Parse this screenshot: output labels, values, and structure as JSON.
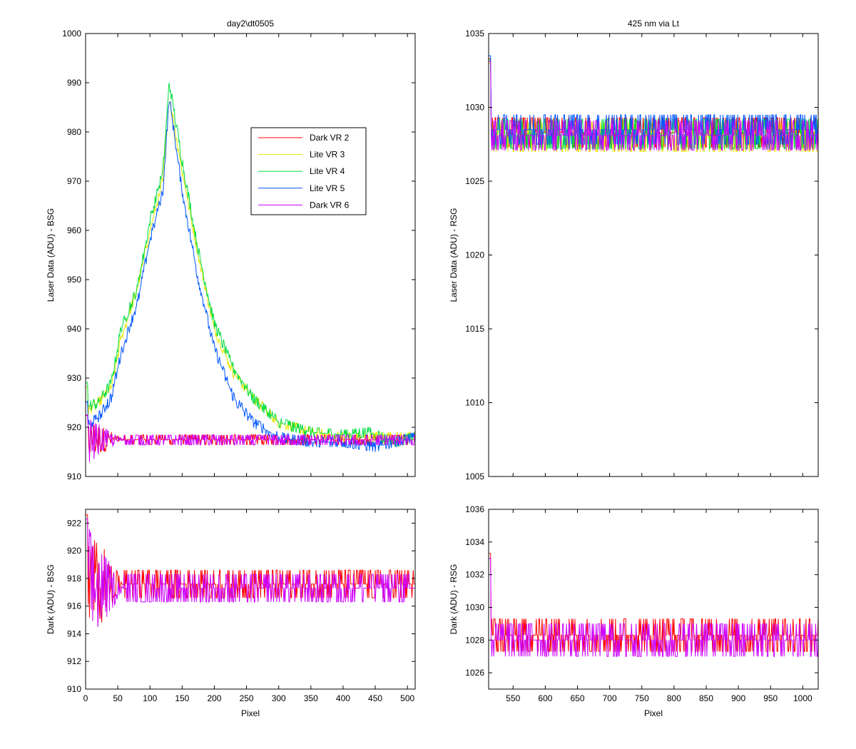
{
  "colors": {
    "dark_vr2": "#ff0000",
    "lite_vr3": "#e6e600",
    "lite_vr4": "#00dd40",
    "lite_vr5": "#0055ff",
    "dark_vr6": "#cc00ff"
  },
  "chart_data": [
    {
      "id": "top-left",
      "type": "line",
      "title": "day2\\dt0505",
      "xlabel": "",
      "ylabel": "Laser Data (ADU) - BSG",
      "xlim": [
        0,
        512
      ],
      "ylim": [
        910,
        1000
      ],
      "xticks": [],
      "yticks": [
        910,
        920,
        930,
        940,
        950,
        960,
        970,
        980,
        990,
        1000
      ],
      "legend": {
        "position": "upper-right-inside",
        "entries": [
          "Dark VR 2",
          "Lite VR 3",
          "Lite VR 4",
          "Lite VR 5",
          "Dark VR 6"
        ]
      },
      "series": [
        {
          "name": "Dark VR 2",
          "color_key": "dark_vr2",
          "baseline": 917.6,
          "noise": 0.9,
          "x": [
            0,
            100,
            200,
            300,
            400,
            512
          ],
          "y": [
            917.5,
            917.5,
            917.5,
            917.5,
            917.5,
            917.5
          ]
        },
        {
          "name": "Lite VR 3",
          "color_key": "lite_vr3",
          "noise": 0.8,
          "x": [
            0,
            20,
            40,
            55,
            80,
            100,
            120,
            130,
            150,
            175,
            200,
            230,
            260,
            300,
            350,
            400,
            430,
            460,
            512
          ],
          "y": [
            923,
            925,
            928,
            938,
            948,
            960,
            970,
            987,
            972,
            955,
            940,
            931,
            926,
            921,
            919,
            918,
            918,
            918,
            918
          ]
        },
        {
          "name": "Lite VR 4",
          "color_key": "lite_vr4",
          "noise": 1.0,
          "x": [
            0,
            20,
            40,
            55,
            80,
            100,
            120,
            130,
            150,
            175,
            200,
            230,
            260,
            300,
            350,
            400,
            440,
            460,
            480,
            512
          ],
          "y": [
            924,
            925,
            929,
            940,
            948,
            962,
            972,
            990,
            974,
            956,
            941,
            932,
            926,
            921,
            919,
            918.5,
            919,
            918,
            917,
            918
          ]
        },
        {
          "name": "Lite VR 5",
          "color_key": "lite_vr5",
          "noise": 1.0,
          "x": [
            0,
            20,
            40,
            55,
            80,
            100,
            120,
            130,
            150,
            175,
            200,
            230,
            260,
            300,
            350,
            400,
            450,
            480,
            512
          ],
          "y": [
            920,
            922,
            926,
            935,
            945,
            958,
            968,
            987,
            968,
            950,
            936,
            926,
            921,
            918,
            917,
            917,
            916,
            917,
            918
          ]
        },
        {
          "name": "Dark VR 6",
          "color_key": "dark_vr6",
          "baseline": 917.4,
          "noise": 1.2,
          "x": [
            0,
            100,
            200,
            300,
            400,
            512
          ],
          "y": [
            917.4,
            917.4,
            917.4,
            917.4,
            917.4,
            917.4
          ]
        }
      ]
    },
    {
      "id": "top-right",
      "type": "line",
      "title": "425 nm via Lt",
      "xlabel": "",
      "ylabel": "Laser Data (ADU) - RSG",
      "xlim": [
        512,
        1024
      ],
      "ylim": [
        1005,
        1035
      ],
      "xticks": [],
      "yticks": [
        1005,
        1010,
        1015,
        1020,
        1025,
        1030,
        1035
      ],
      "series": [
        {
          "name": "Dark VR 2",
          "color_key": "dark_vr2",
          "x": [
            512,
            1024
          ],
          "y": [
            1028.3,
            1028.3
          ]
        },
        {
          "name": "Lite VR 3",
          "color_key": "lite_vr3",
          "x": [
            512,
            1024
          ],
          "y": [
            1028,
            1028
          ]
        },
        {
          "name": "Lite VR 4",
          "color_key": "lite_vr4",
          "x": [
            512,
            1024
          ],
          "y": [
            1028.2,
            1028.2
          ]
        },
        {
          "name": "Lite VR 5",
          "color_key": "lite_vr5",
          "x": [
            512,
            1024
          ],
          "y": [
            1028.5,
            1028.5
          ]
        },
        {
          "name": "Dark VR 6",
          "color_key": "dark_vr6",
          "x": [
            512,
            1024
          ],
          "y": [
            1028.1,
            1028.1
          ]
        }
      ]
    },
    {
      "id": "bottom-left",
      "type": "line",
      "title": "",
      "xlabel": "Pixel",
      "ylabel": "Dark (ADU) - BSG",
      "xlim": [
        0,
        512
      ],
      "ylim": [
        910,
        923
      ],
      "xticks": [
        0,
        50,
        100,
        150,
        200,
        250,
        300,
        350,
        400,
        450,
        500
      ],
      "yticks": [
        910,
        912,
        914,
        916,
        918,
        920,
        922
      ],
      "series": [
        {
          "name": "Dark VR 2",
          "color_key": "dark_vr2",
          "x": [
            0,
            512
          ],
          "y": [
            917.6,
            917.6
          ]
        },
        {
          "name": "Dark VR 6",
          "color_key": "dark_vr6",
          "x": [
            0,
            512
          ],
          "y": [
            917.3,
            917.3
          ]
        }
      ]
    },
    {
      "id": "bottom-right",
      "type": "line",
      "title": "",
      "xlabel": "Pixel",
      "ylabel": "Dark (ADU) - RSG",
      "xlim": [
        512,
        1024
      ],
      "ylim": [
        1025,
        1036
      ],
      "xticks": [
        550,
        600,
        650,
        700,
        750,
        800,
        850,
        900,
        950,
        1000
      ],
      "yticks": [
        1026,
        1028,
        1030,
        1032,
        1034,
        1036
      ],
      "series": [
        {
          "name": "Dark VR 2",
          "color_key": "dark_vr2",
          "x": [
            512,
            1024
          ],
          "y": [
            1028.3,
            1028.3
          ]
        },
        {
          "name": "Dark VR 6",
          "color_key": "dark_vr6",
          "x": [
            512,
            1024
          ],
          "y": [
            1028.0,
            1028.0
          ]
        }
      ]
    }
  ]
}
